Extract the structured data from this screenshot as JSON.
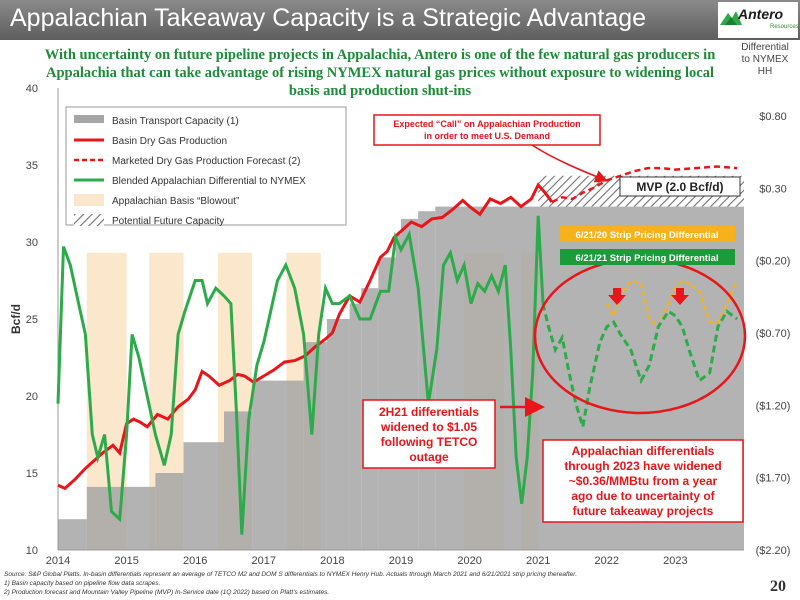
{
  "slide": {
    "title": "Appalachian Takeaway Capacity is a Strategic Advantage",
    "subtitle": "With uncertainty on future pipeline projects in Appalachia, Antero is one of the few natural gas producers in Appalachia that can take advantage of rising NYMEX natural gas prices without exposure to widening local basis and production shut-ins",
    "logo_text": "Antero",
    "logo_sub": "Resources",
    "right_axis_header": [
      "Differential",
      "to NYMEX",
      "HH"
    ],
    "page_number": "20",
    "footnotes": [
      "Source: S&P Global Platts. In-basin differentials represent an average of TETCO M2 and DOM S differentials to NYMEX Henry Hub. Actuals through March 2021 and 6/21/2021 strip pricing thereafter.",
      "1)      Basin capacity based on pipeline flow data scrapes.",
      "2)      Production forecast and Mountain Valley Pipeline (MVP) In-Service date (1Q 2022) based on Platt’s estimates."
    ],
    "colors": {
      "green": "#2dab4b",
      "red": "#e8151b",
      "gray": "#a6a6a6",
      "tan": "#fbe7cb",
      "gold": "#f5b21b",
      "darkgreen": "#1d9a3a"
    }
  },
  "chart_data": {
    "type": "line",
    "ylabel": "Bcf/d",
    "y_left": {
      "min": 10,
      "max": 40,
      "ticks": [
        10,
        15,
        20,
        25,
        30,
        35,
        40
      ]
    },
    "y_right": {
      "ticks": [
        "($2.20)",
        "($1.70)",
        "($1.20)",
        "($0.70)",
        "($0.20)",
        "$0.30",
        "$0.80"
      ],
      "values": [
        -2.2,
        -1.7,
        -1.2,
        -0.7,
        -0.2,
        0.3,
        0.8
      ]
    },
    "x": {
      "min": 2014.0,
      "max": 2024.0,
      "ticks": [
        "2014",
        "2015",
        "2016",
        "2017",
        "2018",
        "2019",
        "2020",
        "2021",
        "2022",
        "2023"
      ]
    },
    "legend": [
      "Basin Transport Capacity (1)",
      "Basin Dry Gas Production",
      "Marketed Dry Gas Production Forecast (2)",
      "Blended Appalachian Differential to NYMEX",
      "Appalachian Basis “Blowout”",
      "Potential Future Capacity"
    ],
    "basin_capacity_steps": [
      [
        2014.0,
        12.0
      ],
      [
        2014.42,
        14.1
      ],
      [
        2015.42,
        15.0
      ],
      [
        2015.83,
        17.0
      ],
      [
        2016.42,
        19.0
      ],
      [
        2016.83,
        21.0
      ],
      [
        2017.58,
        23.5
      ],
      [
        2017.92,
        25.0
      ],
      [
        2018.25,
        26.0
      ],
      [
        2018.42,
        27.0
      ],
      [
        2018.67,
        29.0
      ],
      [
        2018.92,
        30.5
      ],
      [
        2019.0,
        31.5
      ],
      [
        2019.25,
        32.0
      ],
      [
        2019.5,
        32.3
      ],
      [
        2024.0,
        32.3
      ]
    ],
    "potential_future_capacity": {
      "x_start": 2021.0,
      "x_end": 2024.0,
      "y_from": 32.3,
      "y_to": 34.3
    },
    "blowout_periods": [
      [
        2014.42,
        2015.0
      ],
      [
        2015.33,
        2015.83
      ],
      [
        2016.33,
        2016.83
      ],
      [
        2017.33,
        2017.83
      ],
      [
        2019.92,
        2020.5
      ],
      [
        2020.75,
        2021.0
      ]
    ],
    "basin_dry_gas_production": {
      "x": [
        2014.0,
        2014.1,
        2014.25,
        2014.4,
        2014.5,
        2014.65,
        2014.8,
        2014.9,
        2015.0,
        2015.1,
        2015.2,
        2015.3,
        2015.45,
        2015.6,
        2015.75,
        2015.9,
        2016.0,
        2016.1,
        2016.2,
        2016.35,
        2016.5,
        2016.62,
        2016.72,
        2016.85,
        2017.0,
        2017.15,
        2017.3,
        2017.45,
        2017.6,
        2017.75,
        2017.9,
        2018.0,
        2018.1,
        2018.25,
        2018.4,
        2018.55,
        2018.7,
        2018.8,
        2018.9,
        2019.0,
        2019.15,
        2019.3,
        2019.45,
        2019.6,
        2019.75,
        2019.9,
        2020.0,
        2020.15,
        2020.3,
        2020.45,
        2020.6,
        2020.75,
        2020.9,
        2021.0,
        2021.1,
        2021.2
      ],
      "y": [
        14.2,
        14.0,
        14.6,
        15.3,
        15.7,
        16.3,
        16.8,
        16.3,
        18.2,
        18.5,
        18.3,
        18.0,
        18.8,
        18.5,
        19.3,
        19.8,
        20.4,
        21.6,
        21.3,
        20.7,
        21.0,
        21.4,
        21.3,
        20.9,
        21.3,
        21.7,
        22.2,
        22.3,
        22.6,
        23.2,
        23.7,
        24.1,
        25.3,
        26.5,
        26.1,
        27.5,
        29.0,
        29.4,
        30.3,
        30.7,
        31.3,
        31.0,
        31.5,
        31.6,
        32.1,
        32.7,
        32.3,
        31.8,
        32.8,
        32.5,
        32.9,
        32.3,
        32.8,
        33.7,
        33.2,
        32.6
      ]
    },
    "marketed_forecast": {
      "x": [
        2021.2,
        2021.35,
        2021.5,
        2021.65,
        2021.8,
        2022.0,
        2022.2,
        2022.4,
        2022.6,
        2022.8,
        2023.0,
        2023.3,
        2023.6,
        2023.9
      ],
      "y": [
        32.6,
        32.9,
        32.8,
        33.2,
        33.5,
        34.0,
        34.3,
        34.6,
        34.8,
        34.8,
        34.7,
        34.8,
        34.9,
        34.8
      ]
    },
    "blended_differential_actual": {
      "x": [
        2014.0,
        2014.08,
        2014.18,
        2014.3,
        2014.4,
        2014.5,
        2014.58,
        2014.68,
        2014.78,
        2014.9,
        2015.0,
        2015.08,
        2015.18,
        2015.3,
        2015.42,
        2015.55,
        2015.65,
        2015.75,
        2015.85,
        2016.0,
        2016.1,
        2016.18,
        2016.3,
        2016.42,
        2016.52,
        2016.6,
        2016.68,
        2016.78,
        2016.9,
        2017.0,
        2017.1,
        2017.2,
        2017.32,
        2017.45,
        2017.58,
        2017.7,
        2017.8,
        2017.9,
        2018.0,
        2018.1,
        2018.25,
        2018.4,
        2018.55,
        2018.7,
        2018.82,
        2018.92,
        2019.0,
        2019.12,
        2019.25,
        2019.4,
        2019.52,
        2019.62,
        2019.72,
        2019.82,
        2019.92,
        2020.02,
        2020.12,
        2020.22,
        2020.32,
        2020.42,
        2020.52,
        2020.6,
        2020.68,
        2020.76,
        2020.84,
        2020.92,
        2021.0,
        2021.07
      ],
      "y": [
        19.5,
        29.7,
        28.5,
        26.0,
        24.0,
        17.5,
        16.0,
        17.5,
        12.5,
        12.0,
        17.5,
        24.0,
        22.5,
        20.0,
        17.5,
        15.5,
        17.5,
        24.0,
        25.5,
        27.5,
        27.5,
        26.0,
        27.0,
        26.5,
        26.0,
        19.0,
        11.0,
        18.5,
        22.0,
        23.5,
        25.5,
        27.5,
        28.5,
        27.0,
        24.0,
        17.5,
        24.0,
        27.0,
        26.0,
        26.0,
        26.5,
        25.0,
        25.0,
        26.8,
        26.8,
        30.3,
        29.5,
        30.5,
        27.0,
        19.5,
        23.0,
        28.5,
        29.3,
        27.5,
        28.5,
        26.0,
        27.3,
        26.8,
        27.8,
        26.8,
        28.5,
        23.0,
        16.0,
        13.0,
        16.0,
        21.5,
        31.7,
        26.0
      ]
    },
    "strip_620": {
      "label": "6/21/20 Strip Pricing Differential",
      "x": [
        2022.0,
        2022.1,
        2022.2,
        2022.35,
        2022.5,
        2022.62,
        2022.75,
        2022.9,
        2023.0,
        2023.1,
        2023.2,
        2023.35,
        2023.5,
        2023.62,
        2023.75,
        2023.9
      ],
      "y": [
        26.0,
        25.2,
        26.5,
        27.5,
        27.3,
        25.0,
        24.5,
        26.0,
        27.0,
        27.5,
        27.3,
        26.8,
        24.8,
        24.8,
        26.0,
        27.5
      ]
    },
    "strip_621": {
      "label": "6/21/21 Strip Pricing Differential",
      "x": [
        2021.07,
        2021.15,
        2021.25,
        2021.35,
        2021.45,
        2021.55,
        2021.65,
        2021.75,
        2021.9,
        2022.0,
        2022.1,
        2022.2,
        2022.35,
        2022.5,
        2022.62,
        2022.75,
        2022.9,
        2023.0,
        2023.1,
        2023.2,
        2023.35,
        2023.5,
        2023.62,
        2023.75,
        2023.9
      ],
      "y": [
        26.0,
        24.5,
        23.0,
        23.8,
        21.5,
        19.5,
        18.0,
        20.5,
        23.5,
        24.5,
        24.8,
        24.0,
        23.0,
        21.0,
        22.0,
        24.5,
        25.5,
        25.2,
        24.5,
        23.0,
        21.0,
        21.5,
        24.5,
        25.5,
        25.0
      ]
    },
    "annotations": {
      "expected_call": "Expected “Call” on Appalachian Production in order to meet U.S. Demand",
      "mvp": "MVP (2.0 Bcf/d)",
      "h2_2021": "2H21 differentials widened to $1.05 following TETCO outage",
      "appalachian_diff": "Appalachian differentials through 2023 have widened ~$0.36/MMBtu from a year ago due to uncertainty of future takeaway projects"
    },
    "grid": false,
    "legend_placement": "top-left"
  }
}
